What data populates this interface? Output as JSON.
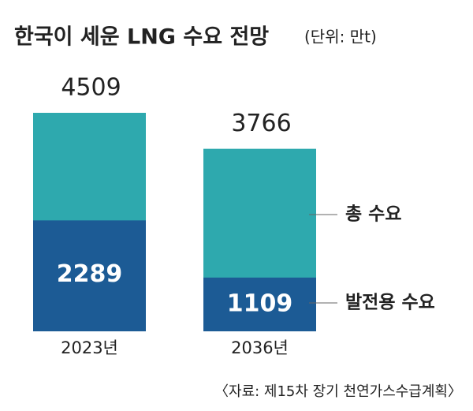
{
  "chart_data": {
    "type": "bar",
    "title": "한국이 세운 LNG 수요 전망",
    "subtitle": "(단위: 만t)",
    "categories": [
      "2023년",
      "2036년"
    ],
    "series": [
      {
        "name": "총 수요",
        "color": "#2ea9ae",
        "values": [
          4509,
          3766
        ]
      },
      {
        "name": "발전용 수요",
        "color": "#1c5b95",
        "values": [
          2289,
          1109
        ]
      }
    ],
    "source": "〈자료: 제15차 장기 천연가스수급계획〉"
  }
}
